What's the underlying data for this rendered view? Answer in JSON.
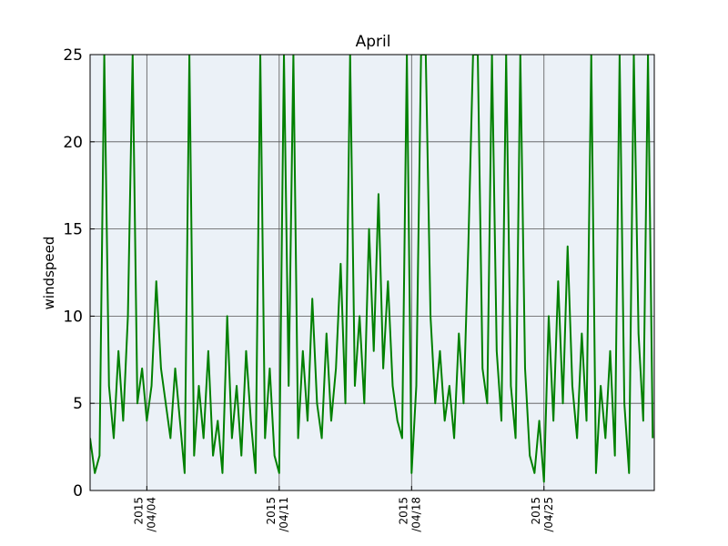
{
  "chart_data": {
    "type": "line",
    "title": "April",
    "y_label": "windspeed",
    "color": "#008000",
    "grid": true,
    "x": [
      "2015/04/01 00:00",
      "2015/04/01 06:00",
      "2015/04/01 12:00",
      "2015/04/01 18:00",
      "2015/04/02 00:00",
      "2015/04/02 06:00",
      "2015/04/02 12:00",
      "2015/04/02 18:00",
      "2015/04/03 00:00",
      "2015/04/03 06:00",
      "2015/04/03 12:00",
      "2015/04/03 18:00",
      "2015/04/04 00:00",
      "2015/04/04 06:00",
      "2015/04/04 12:00",
      "2015/04/04 18:00",
      "2015/04/05 00:00",
      "2015/04/05 06:00",
      "2015/04/05 12:00",
      "2015/04/05 18:00",
      "2015/04/06 00:00",
      "2015/04/06 06:00",
      "2015/04/06 12:00",
      "2015/04/06 18:00",
      "2015/04/07 00:00",
      "2015/04/07 06:00",
      "2015/04/07 12:00",
      "2015/04/07 18:00",
      "2015/04/08 00:00",
      "2015/04/08 06:00",
      "2015/04/08 12:00",
      "2015/04/08 18:00",
      "2015/04/09 00:00",
      "2015/04/09 06:00",
      "2015/04/09 12:00",
      "2015/04/09 18:00",
      "2015/04/10 00:00",
      "2015/04/10 06:00",
      "2015/04/10 12:00",
      "2015/04/10 18:00",
      "2015/04/11 00:00",
      "2015/04/11 06:00",
      "2015/04/11 12:00",
      "2015/04/11 18:00",
      "2015/04/12 00:00",
      "2015/04/12 06:00",
      "2015/04/12 12:00",
      "2015/04/12 18:00",
      "2015/04/13 00:00",
      "2015/04/13 06:00",
      "2015/04/13 12:00",
      "2015/04/13 18:00",
      "2015/04/14 00:00",
      "2015/04/14 06:00",
      "2015/04/14 12:00",
      "2015/04/14 18:00",
      "2015/04/15 00:00",
      "2015/04/15 06:00",
      "2015/04/15 12:00",
      "2015/04/15 18:00",
      "2015/04/16 00:00",
      "2015/04/16 06:00",
      "2015/04/16 12:00",
      "2015/04/16 18:00",
      "2015/04/17 00:00",
      "2015/04/17 06:00",
      "2015/04/17 12:00",
      "2015/04/17 18:00",
      "2015/04/18 00:00",
      "2015/04/18 06:00",
      "2015/04/18 12:00",
      "2015/04/18 18:00",
      "2015/04/19 00:00",
      "2015/04/19 06:00",
      "2015/04/19 12:00",
      "2015/04/19 18:00",
      "2015/04/20 00:00",
      "2015/04/20 06:00",
      "2015/04/20 12:00",
      "2015/04/20 18:00",
      "2015/04/21 00:00",
      "2015/04/21 06:00",
      "2015/04/21 12:00",
      "2015/04/21 18:00",
      "2015/04/22 00:00",
      "2015/04/22 06:00",
      "2015/04/22 12:00",
      "2015/04/22 18:00",
      "2015/04/23 00:00",
      "2015/04/23 06:00",
      "2015/04/23 12:00",
      "2015/04/23 18:00",
      "2015/04/24 00:00",
      "2015/04/24 06:00",
      "2015/04/24 12:00",
      "2015/04/24 18:00",
      "2015/04/25 00:00",
      "2015/04/25 06:00",
      "2015/04/25 12:00",
      "2015/04/25 18:00",
      "2015/04/26 00:00",
      "2015/04/26 06:00",
      "2015/04/26 12:00",
      "2015/04/26 18:00",
      "2015/04/27 00:00",
      "2015/04/27 06:00",
      "2015/04/27 12:00",
      "2015/04/27 18:00",
      "2015/04/28 00:00",
      "2015/04/28 06:00",
      "2015/04/28 12:00",
      "2015/04/28 18:00",
      "2015/04/29 00:00",
      "2015/04/29 06:00",
      "2015/04/29 12:00",
      "2015/04/29 18:00",
      "2015/04/30 00:00",
      "2015/04/30 06:00",
      "2015/04/30 12:00",
      "2015/04/30 18:00"
    ],
    "values": [
      3,
      1,
      2,
      25,
      6,
      3,
      8,
      4,
      10,
      25,
      5,
      7,
      4,
      6,
      12,
      7,
      5,
      3,
      7,
      4,
      1,
      25,
      2,
      6,
      3,
      8,
      2,
      4,
      1,
      10,
      3,
      6,
      2,
      8,
      4,
      1,
      25,
      3,
      7,
      2,
      1,
      25,
      6,
      25,
      3,
      8,
      4,
      11,
      5,
      3,
      9,
      4,
      7,
      13,
      5,
      25,
      6,
      10,
      5,
      15,
      8,
      17,
      7,
      12,
      6,
      4,
      3,
      25,
      1,
      6,
      25,
      25,
      10,
      5,
      8,
      4,
      6,
      3,
      9,
      5,
      14,
      25,
      25,
      7,
      5,
      25,
      8,
      4,
      25,
      6,
      3,
      25,
      7,
      2,
      1,
      4,
      0.5,
      10,
      4,
      12,
      5,
      14,
      6,
      3,
      9,
      4,
      25,
      1,
      6,
      3,
      8,
      2,
      25,
      5,
      1,
      25,
      9,
      4,
      25,
      3
    ],
    "xlim": [
      "2015/04/01 00:00",
      "2015/04/30 20:00"
    ],
    "xticks": [
      {
        "value": "2015/04/04 00:00",
        "label": "2015\n/04/04"
      },
      {
        "value": "2015/04/11 00:00",
        "label": "2015\n/04/11"
      },
      {
        "value": "2015/04/18 00:00",
        "label": "2015\n/04/18"
      },
      {
        "value": "2015/04/25 00:00",
        "label": "2015\n/04/25"
      }
    ],
    "ylim": [
      0,
      25
    ],
    "yticks": [
      0,
      5,
      10,
      15,
      20,
      25
    ]
  }
}
